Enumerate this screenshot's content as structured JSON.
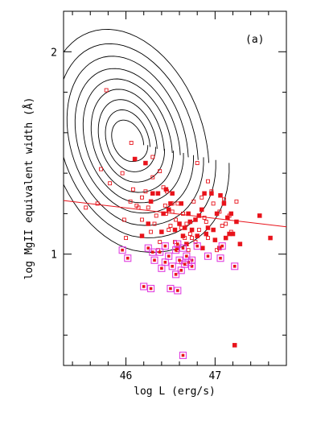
{
  "chart_data": {
    "type": "scatter",
    "panel_label": "(a)",
    "xlabel": "log L (erg/s)",
    "ylabel": "log MgII equivalent width (Å)",
    "xlim": [
      45.3,
      47.8
    ],
    "ylim": [
      0.45,
      2.2
    ],
    "x_ticks": [
      46,
      47
    ],
    "y_ticks": [
      1,
      2
    ],
    "colors": {
      "frame": "#000000",
      "points": "#e8131b",
      "highlight": "#e040e0",
      "fit": "#e8131b",
      "contour": "#000000"
    },
    "contours": {
      "center": [
        46.02,
        1.56
      ],
      "levels": [
        {
          "rx": 0.18,
          "ry": 0.1
        },
        {
          "rx": 0.25,
          "ry": 0.15
        },
        {
          "rx": 0.33,
          "ry": 0.2
        },
        {
          "rx": 0.41,
          "ry": 0.25
        },
        {
          "rx": 0.5,
          "ry": 0.3
        },
        {
          "rx": 0.59,
          "ry": 0.35
        },
        {
          "rx": 0.68,
          "ry": 0.41
        },
        {
          "rx": 0.79,
          "ry": 0.47
        },
        {
          "rx": 0.91,
          "ry": 0.54
        }
      ]
    },
    "fit_line": {
      "x": [
        45.3,
        47.8
      ],
      "y": [
        1.265,
        1.135
      ]
    },
    "series": [
      {
        "marker": "open-square",
        "points": [
          [
            45.78,
            1.81
          ],
          [
            45.96,
            1.4
          ],
          [
            45.82,
            1.35
          ],
          [
            45.55,
            1.23
          ],
          [
            45.68,
            1.25
          ],
          [
            46.05,
            1.26
          ],
          [
            46.18,
            1.17
          ],
          [
            45.98,
            1.17
          ],
          [
            46.08,
            1.32
          ],
          [
            46.18,
            1.28
          ],
          [
            46.25,
            1.23
          ],
          [
            46.32,
            1.15
          ],
          [
            46.38,
            1.06
          ],
          [
            46.45,
            1.2
          ],
          [
            46.48,
            1.12
          ],
          [
            46.52,
            1.25
          ],
          [
            46.55,
            1.06
          ],
          [
            46.58,
            1.02
          ],
          [
            46.62,
            1.13
          ],
          [
            46.66,
            1.08
          ],
          [
            46.72,
            1.1
          ],
          [
            46.78,
            1.06
          ],
          [
            46.82,
            1.12
          ],
          [
            46.88,
            1.18
          ],
          [
            46.92,
            1.08
          ],
          [
            47.02,
            1.02
          ],
          [
            47.08,
            1.14
          ],
          [
            47.16,
            1.19
          ],
          [
            47.24,
            1.26
          ],
          [
            46.42,
            1.33
          ],
          [
            46.58,
            1.25
          ],
          [
            46.46,
            1.31
          ],
          [
            46.34,
            1.19
          ],
          [
            46.22,
            1.31
          ],
          [
            46.14,
            1.23
          ],
          [
            46.3,
            1.38
          ],
          [
            46.38,
            1.41
          ],
          [
            46.3,
            1.48
          ],
          [
            46.12,
            1.24
          ],
          [
            46.85,
            1.28
          ],
          [
            46.92,
            1.36
          ],
          [
            47.12,
            1.15
          ],
          [
            46.68,
            1.15
          ],
          [
            46.76,
            1.26
          ],
          [
            46.98,
            1.25
          ],
          [
            46.8,
            1.45
          ],
          [
            46.96,
            1.31
          ],
          [
            46.56,
            1.17
          ],
          [
            46.64,
            1.2
          ],
          [
            46.7,
            1.02
          ],
          [
            46.74,
            1.08
          ],
          [
            47.05,
            1.21
          ],
          [
            47.18,
            1.11
          ],
          [
            46.62,
            0.96
          ],
          [
            46.36,
            1.02
          ],
          [
            46.5,
            1.14
          ],
          [
            46.06,
            1.55
          ],
          [
            45.72,
            1.42
          ],
          [
            46.28,
            1.11
          ],
          [
            46.9,
            1.16
          ],
          [
            46.0,
            1.08
          ],
          [
            46.44,
            1.24
          ],
          [
            47.1,
            1.27
          ],
          [
            46.52,
            1.21
          ]
        ]
      },
      {
        "marker": "filled-square",
        "points": [
          [
            46.1,
            1.47
          ],
          [
            46.22,
            1.45
          ],
          [
            46.45,
            1.32
          ],
          [
            46.3,
            1.3
          ],
          [
            46.52,
            1.3
          ],
          [
            46.62,
            1.25
          ],
          [
            46.7,
            1.2
          ],
          [
            46.78,
            1.17
          ],
          [
            46.85,
            1.22
          ],
          [
            46.92,
            1.13
          ],
          [
            46.96,
            1.3
          ],
          [
            47.02,
            1.2
          ],
          [
            47.06,
            1.29
          ],
          [
            47.1,
            1.25
          ],
          [
            47.14,
            1.18
          ],
          [
            47.18,
            1.2
          ],
          [
            47.2,
            1.1
          ],
          [
            47.24,
            1.16
          ],
          [
            47.28,
            1.05
          ],
          [
            46.48,
            1.22
          ],
          [
            46.55,
            1.12
          ],
          [
            46.6,
            1.15
          ],
          [
            46.66,
            1.13
          ],
          [
            46.72,
            1.16
          ],
          [
            46.82,
            1.19
          ],
          [
            46.88,
            1.3
          ],
          [
            46.28,
            1.26
          ],
          [
            46.36,
            1.3
          ],
          [
            46.42,
            1.2
          ],
          [
            46.5,
            1.25
          ],
          [
            46.58,
            1.03
          ],
          [
            46.64,
            1.09
          ],
          [
            46.74,
            1.12
          ],
          [
            46.8,
            1.09
          ],
          [
            46.9,
            1.1
          ],
          [
            47.0,
            1.07
          ],
          [
            47.05,
            1.03
          ],
          [
            47.12,
            1.08
          ],
          [
            47.16,
            1.1
          ],
          [
            47.5,
            1.19
          ],
          [
            47.62,
            1.08
          ],
          [
            47.22,
            0.55
          ],
          [
            46.18,
            1.09
          ],
          [
            46.25,
            1.15
          ],
          [
            46.4,
            1.11
          ],
          [
            46.68,
            1.05
          ],
          [
            46.86,
            1.03
          ],
          [
            46.98,
            1.12
          ]
        ]
      },
      {
        "marker": "highlight-square",
        "points": [
          [
            45.96,
            1.02
          ],
          [
            46.02,
            0.98
          ],
          [
            46.25,
            1.03
          ],
          [
            46.32,
            0.97
          ],
          [
            46.38,
            1.01
          ],
          [
            46.44,
            0.96
          ],
          [
            46.48,
            0.99
          ],
          [
            46.52,
            0.94
          ],
          [
            46.56,
            1.02
          ],
          [
            46.6,
            0.97
          ],
          [
            46.64,
            1.03
          ],
          [
            46.68,
            0.99
          ],
          [
            46.74,
            0.94
          ],
          [
            46.8,
            1.04
          ],
          [
            46.92,
            0.99
          ],
          [
            47.08,
            1.04
          ],
          [
            47.22,
            0.94
          ],
          [
            46.2,
            0.84
          ],
          [
            46.28,
            0.83
          ],
          [
            46.5,
            0.83
          ],
          [
            46.58,
            0.82
          ],
          [
            46.56,
            0.9
          ],
          [
            46.62,
            0.92
          ],
          [
            46.64,
            0.5
          ],
          [
            46.74,
            0.97
          ],
          [
            46.4,
            0.93
          ],
          [
            46.7,
            0.96
          ],
          [
            46.44,
            1.04
          ],
          [
            46.3,
            1.01
          ],
          [
            47.06,
            0.98
          ],
          [
            46.66,
            0.95
          ],
          [
            46.58,
            1.05
          ]
        ]
      }
    ]
  }
}
